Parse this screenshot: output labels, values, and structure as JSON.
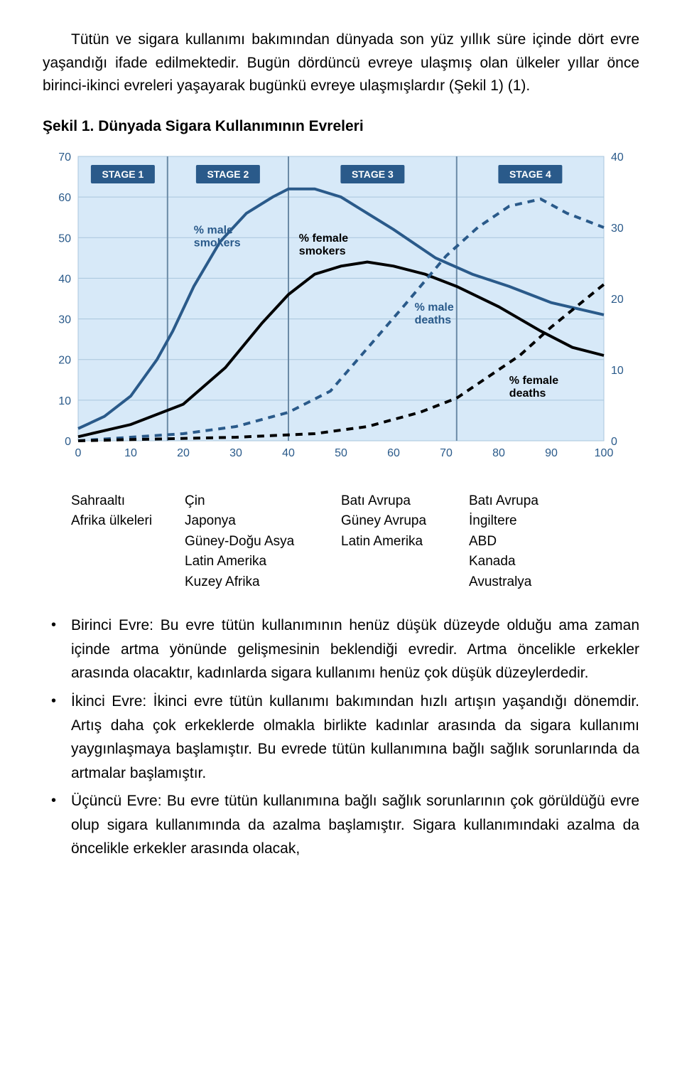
{
  "paragraph1": "Tütün ve sigara kullanımı bakımından dünyada son yüz yıllık süre içinde dört evre yaşandığı ifade edilmektedir. Bugün dördüncü evreye ulaşmış olan ülkeler yıllar önce birinci-ikinci evreleri yaşayarak bugünkü evreye ulaşmışlardır (Şekil 1) (1).",
  "figure_title": "Şekil 1. Dünyada Sigara Kullanımının Evreleri",
  "chart": {
    "left_ticks": [
      0,
      10,
      20,
      30,
      40,
      50,
      60,
      70
    ],
    "right_ticks": [
      0,
      10,
      20,
      30,
      40
    ],
    "x_ticks": [
      0,
      10,
      20,
      30,
      40,
      50,
      60,
      70,
      80,
      90,
      100
    ],
    "bg_color": "#d7e9f8",
    "grid_color": "#a9c6dc",
    "axis_text_color": "#2a5a8a",
    "stage_fill": "#2a5a8a",
    "stage_text": "#ffffff",
    "stages": [
      "STAGE 1",
      "STAGE 2",
      "STAGE 3",
      "STAGE 4"
    ],
    "stage_dividers_x": [
      17,
      40,
      72
    ],
    "labels": {
      "male_smokers": {
        "text": "% male\nsmokers",
        "x": 22,
        "y_left": 51,
        "color": "#2a5a8a"
      },
      "female_smokers": {
        "text": "% female\nsmokers",
        "x": 42,
        "y_left": 49,
        "color": "#000000"
      },
      "male_deaths": {
        "text": "% male\ndeaths",
        "x": 64,
        "y_left": 32,
        "color": "#2a5a8a"
      },
      "female_deaths": {
        "text": "% female\ndeaths",
        "x": 82,
        "y_left": 14,
        "color": "#000000"
      }
    },
    "series": {
      "male_smokers": {
        "color": "#2a5a8a",
        "width": 4,
        "dash": "none",
        "points": [
          [
            0,
            3
          ],
          [
            5,
            6
          ],
          [
            10,
            11
          ],
          [
            15,
            20
          ],
          [
            18,
            27
          ],
          [
            22,
            38
          ],
          [
            27,
            49
          ],
          [
            32,
            56
          ],
          [
            37,
            60
          ],
          [
            40,
            62
          ],
          [
            45,
            62
          ],
          [
            50,
            60
          ],
          [
            55,
            56
          ],
          [
            60,
            52
          ],
          [
            68,
            45
          ],
          [
            75,
            41
          ],
          [
            82,
            38
          ],
          [
            90,
            34
          ],
          [
            100,
            31
          ]
        ]
      },
      "female_smokers": {
        "color": "#000000",
        "width": 4,
        "dash": "none",
        "points": [
          [
            0,
            1
          ],
          [
            10,
            4
          ],
          [
            20,
            9
          ],
          [
            28,
            18
          ],
          [
            35,
            29
          ],
          [
            40,
            36
          ],
          [
            45,
            41
          ],
          [
            50,
            43
          ],
          [
            55,
            44
          ],
          [
            60,
            43
          ],
          [
            66,
            41
          ],
          [
            72,
            38
          ],
          [
            80,
            33
          ],
          [
            88,
            27
          ],
          [
            94,
            23
          ],
          [
            100,
            21
          ]
        ]
      },
      "male_deaths": {
        "color": "#2a5a8a",
        "width": 4,
        "dash": "10,8",
        "points_right": [
          [
            0,
            0
          ],
          [
            20,
            1
          ],
          [
            30,
            2
          ],
          [
            40,
            4
          ],
          [
            48,
            7
          ],
          [
            55,
            13
          ],
          [
            62,
            19
          ],
          [
            70,
            26
          ],
          [
            76,
            30
          ],
          [
            82,
            33
          ],
          [
            88,
            34
          ],
          [
            93,
            32
          ],
          [
            100,
            30
          ]
        ]
      },
      "female_deaths": {
        "color": "#000000",
        "width": 4,
        "dash": "10,8",
        "points_right": [
          [
            0,
            0
          ],
          [
            30,
            0.5
          ],
          [
            45,
            1
          ],
          [
            55,
            2
          ],
          [
            65,
            4
          ],
          [
            72,
            6
          ],
          [
            78,
            9
          ],
          [
            84,
            12
          ],
          [
            90,
            16
          ],
          [
            95,
            19
          ],
          [
            100,
            22
          ]
        ]
      }
    }
  },
  "stage_table": {
    "c1": [
      "Sahraaltı",
      "Afrika ülkeleri"
    ],
    "c2": [
      "Çin",
      "Japonya",
      "Güney-Doğu Asya",
      "Latin Amerika",
      "Kuzey Afrika"
    ],
    "c3": [
      "Batı Avrupa",
      "Güney Avrupa",
      "Latin Amerika"
    ],
    "c4": [
      "Batı Avrupa",
      "İngiltere",
      "ABD",
      "Kanada",
      "Avustralya"
    ]
  },
  "bullets": [
    "Birinci Evre: Bu evre tütün kullanımının henüz düşük düzeyde olduğu ama zaman içinde artma yönünde gelişmesinin beklendiği evredir. Artma öncelikle erkekler arasında olacaktır, kadınlarda sigara kullanımı henüz çok düşük düzeylerdedir.",
    "İkinci Evre: İkinci evre tütün kullanımı bakımından hızlı artışın yaşandığı dönemdir. Artış daha çok erkeklerde olmakla birlikte kadınlar arasında da sigara kullanımı yaygınlaşmaya başlamıştır. Bu evrede tütün kullanımına bağlı sağlık sorunlarında da artmalar başlamıştır.",
    "Üçüncü Evre: Bu evre tütün kullanımına bağlı sağlık sorunlarının çok görüldüğü evre olup sigara kullanımında da azalma başlamıştır. Sigara kullanımındaki azalma da öncelikle erkekler arasında olacak,"
  ]
}
